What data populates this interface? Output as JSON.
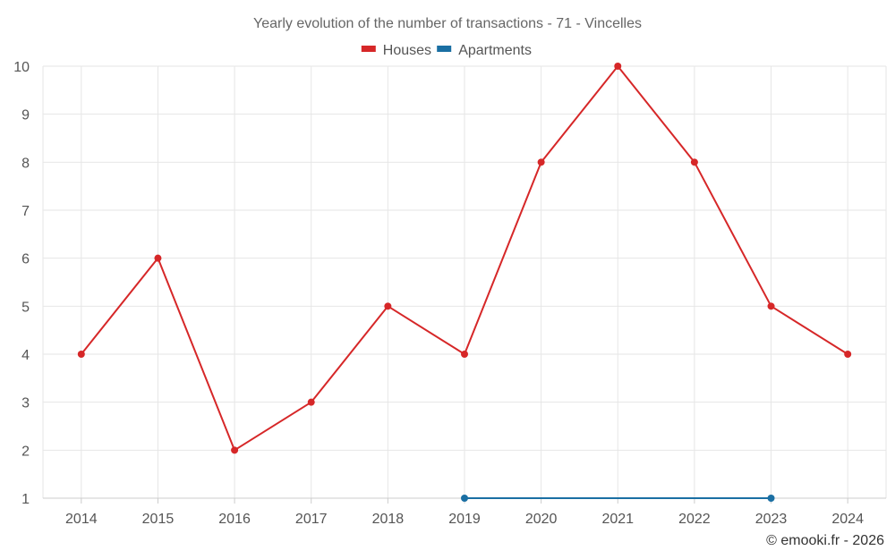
{
  "chart_data": {
    "type": "line",
    "title": "Yearly evolution of the number of transactions - 71 - Vincelles",
    "categories": [
      "2014",
      "2015",
      "2016",
      "2017",
      "2018",
      "2019",
      "2020",
      "2021",
      "2022",
      "2023",
      "2024"
    ],
    "y_ticks": [
      "1",
      "2",
      "3",
      "4",
      "5",
      "6",
      "7",
      "8",
      "9",
      "10"
    ],
    "ylim": [
      1,
      10
    ],
    "grid": true,
    "legend_position": "top-center",
    "series": [
      {
        "name": "Houses",
        "color": "#d62728",
        "values": [
          4,
          6,
          2,
          3,
          5,
          4,
          8,
          10,
          8,
          5,
          4
        ]
      },
      {
        "name": "Apartments",
        "color": "#1a6fa3",
        "values": [
          null,
          null,
          null,
          null,
          null,
          1,
          null,
          null,
          null,
          1,
          null
        ]
      }
    ]
  },
  "credit": "© emooki.fr - 2026"
}
